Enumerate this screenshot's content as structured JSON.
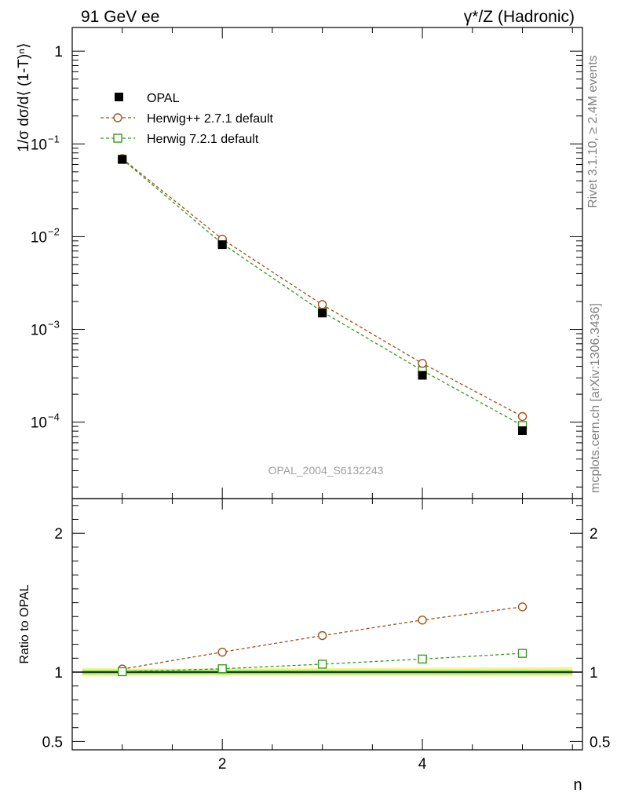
{
  "header": {
    "left": "91 GeV ee",
    "right": "γ*/Z (Hadronic)"
  },
  "side_labels": {
    "rivet": "Rivet 3.1.10, ≥ 2.4M events",
    "mcplots": "mcplots.cern.ch [arXiv:1306.3436]"
  },
  "watermark": "OPAL_2004_S6132243",
  "colors": {
    "opal": "#000000",
    "herwigpp": "#a0521a",
    "herwig7": "#3a9a1e",
    "band_outer": "#f4f77c",
    "band_inner": "#7fe07f"
  },
  "chart_data": [
    {
      "type": "line",
      "panel": "main",
      "ylabel": "1/σ dσ/d⟨ (1-T)ⁿ⟩",
      "yscale": "log",
      "xlim": [
        0.5,
        5.6
      ],
      "ylim": [
        1.5e-05,
        1.8
      ],
      "yticks": [
        {
          "value": 1,
          "label": "1"
        },
        {
          "value": 0.1,
          "label": "10",
          "exp": "−1"
        },
        {
          "value": 0.01,
          "label": "10",
          "exp": "−2"
        },
        {
          "value": 0.001,
          "label": "10",
          "exp": "−3"
        },
        {
          "value": 0.0001,
          "label": "10",
          "exp": "−4"
        }
      ],
      "legend_position": "top-left",
      "x": [
        1,
        2,
        3,
        4,
        5
      ],
      "series": [
        {
          "name": "OPAL",
          "marker": "filled-square",
          "values": [
            0.068,
            0.0082,
            0.0015,
            0.00032,
            8.1e-05
          ]
        },
        {
          "name": "Herwig++ 2.7.1 default",
          "marker": "open-circle",
          "line": "dashed",
          "values": [
            0.0695,
            0.0094,
            0.00185,
            0.00043,
            0.000115
          ]
        },
        {
          "name": "Herwig 7.2.1 default",
          "marker": "open-square",
          "line": "dashed",
          "values": [
            0.0682,
            0.0084,
            0.00155,
            0.00036,
            9.2e-05
          ]
        }
      ]
    },
    {
      "type": "line",
      "panel": "ratio",
      "ylabel": "Ratio to OPAL",
      "xlabel": "n",
      "xlim": [
        0.5,
        5.6
      ],
      "ylim": [
        0.44,
        2.25
      ],
      "xticks": [
        {
          "value": 2,
          "label": "2"
        },
        {
          "value": 4,
          "label": "4"
        }
      ],
      "yticks": [
        {
          "value": 0.5,
          "label": "0.5"
        },
        {
          "value": 1,
          "label": "1"
        },
        {
          "value": 2,
          "label": "2"
        }
      ],
      "x": [
        1,
        2,
        3,
        4,
        5
      ],
      "reference": 1,
      "band_outer": [
        [
          0.6,
          0.97,
          1.03
        ],
        [
          1.5,
          0.975,
          1.025
        ],
        [
          5.5,
          0.97,
          1.035
        ]
      ],
      "band_inner": [
        [
          0.6,
          0.985,
          1.015
        ],
        [
          5.5,
          0.985,
          1.015
        ]
      ],
      "series": [
        {
          "name": "Herwig++ 2.7.1 default",
          "marker": "open-circle",
          "line": "dashed",
          "values": [
            1.022,
            1.144,
            1.263,
            1.375,
            1.47
          ]
        },
        {
          "name": "Herwig 7.2.1 default",
          "marker": "open-square",
          "line": "dashed",
          "values": [
            1.003,
            1.024,
            1.057,
            1.094,
            1.135
          ]
        }
      ]
    }
  ]
}
